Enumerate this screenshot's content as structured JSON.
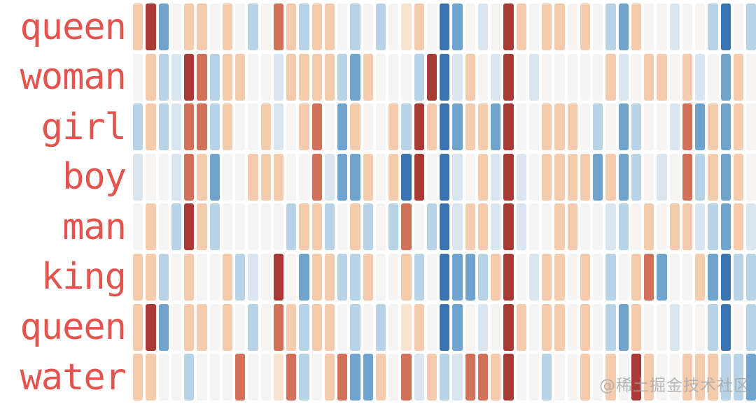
{
  "page": {
    "background": "#ffffff",
    "label_color": "#e2544d"
  },
  "watermark": {
    "text": "@稀土掘金技术社区",
    "color": "#a6a6a6"
  },
  "chart_data": {
    "type": "heatmap",
    "title": "",
    "xlabel": "",
    "ylabel": "",
    "legend": "none",
    "grid": "off",
    "rows": [
      "queen",
      "woman",
      "girl",
      "boy",
      "man",
      "king",
      "queen",
      "water"
    ],
    "n_cols": 49,
    "value_scale": "diverging -4 (strong blue) .. 0 (white) .. +4 (dark red)",
    "colormap": {
      "-4": "#3a74b1",
      "-3": "#6fa4ce",
      "-2": "#b7d3e5",
      "-1": "#d9e6ef",
      "0": "#f7f5f3",
      "1": "#f9e3d1",
      "2": "#f5cbae",
      "3": "#d2705a",
      "4": "#a93a35"
    },
    "values": [
      [
        2,
        4,
        -3,
        0,
        2,
        2,
        0,
        2,
        0,
        -2,
        0,
        3,
        2,
        -2,
        2,
        2,
        0,
        -2,
        0,
        -2,
        0,
        1,
        2,
        0,
        -4,
        -3,
        0,
        -1,
        0,
        4,
        2,
        0,
        2,
        2,
        0,
        2,
        0,
        -2,
        -3,
        2,
        0,
        0,
        -1,
        0,
        0,
        -2,
        -4,
        0,
        -2
      ],
      [
        0,
        2,
        -2,
        -1,
        4,
        3,
        -2,
        2,
        2,
        0,
        0,
        -1,
        2,
        2,
        2,
        2,
        -2,
        -3,
        2,
        0,
        0,
        0,
        -2,
        4,
        -4,
        -1,
        2,
        0,
        -1,
        4,
        0,
        -1,
        0,
        0,
        0,
        0,
        0,
        2,
        -1,
        0,
        2,
        2,
        0,
        2,
        -1,
        0,
        -3,
        2,
        0
      ],
      [
        -2,
        2,
        -2,
        -1,
        3,
        3,
        -2,
        2,
        0,
        0,
        2,
        -1,
        0,
        2,
        3,
        0,
        -3,
        2,
        0,
        0,
        2,
        -2,
        4,
        2,
        -4,
        -3,
        2,
        2,
        -3,
        4,
        0,
        0,
        2,
        2,
        2,
        0,
        -2,
        0,
        -3,
        -2,
        0,
        0,
        -1,
        3,
        -3,
        2,
        -3,
        2,
        0
      ],
      [
        -1,
        0,
        0,
        -1,
        3,
        2,
        -3,
        0,
        0,
        2,
        2,
        2,
        0,
        0,
        3,
        -1,
        -3,
        -3,
        2,
        0,
        2,
        -4,
        4,
        0,
        -4,
        -1,
        0,
        2,
        -1,
        4,
        -1,
        0,
        2,
        2,
        2,
        2,
        -3,
        2,
        -3,
        -2,
        0,
        -1,
        0,
        3,
        -2,
        2,
        -3,
        2,
        0
      ],
      [
        0,
        2,
        0,
        -2,
        4,
        2,
        -2,
        0,
        0,
        0,
        0,
        0,
        -2,
        2,
        2,
        -2,
        0,
        2,
        -2,
        0,
        -2,
        3,
        0,
        -2,
        -4,
        -1,
        2,
        2,
        -1,
        4,
        -1,
        0,
        0,
        2,
        2,
        0,
        0,
        -1,
        -2,
        0,
        2,
        0,
        2,
        2,
        -1,
        -2,
        -3,
        2,
        -1
      ],
      [
        2,
        2,
        -2,
        0,
        2,
        0,
        0,
        2,
        -2,
        -1,
        0,
        4,
        0,
        -3,
        2,
        2,
        -2,
        -2,
        2,
        0,
        0,
        2,
        -2,
        0,
        -4,
        -3,
        -3,
        -2,
        2,
        4,
        0,
        -1,
        2,
        2,
        0,
        2,
        0,
        -2,
        0,
        2,
        3,
        -3,
        0,
        0,
        2,
        -3,
        -4,
        -2,
        -2
      ],
      [
        2,
        4,
        -3,
        0,
        2,
        2,
        0,
        2,
        0,
        -2,
        0,
        3,
        2,
        -2,
        2,
        2,
        0,
        -2,
        0,
        -2,
        0,
        1,
        2,
        0,
        -4,
        -3,
        0,
        -1,
        0,
        4,
        2,
        0,
        2,
        2,
        0,
        2,
        0,
        -2,
        -3,
        2,
        0,
        0,
        -1,
        0,
        0,
        -2,
        -4,
        0,
        -2
      ],
      [
        2,
        2,
        0,
        0,
        -2,
        0,
        0,
        0,
        3,
        0,
        0,
        1,
        3,
        -2,
        0,
        2,
        3,
        -3,
        -3,
        2,
        0,
        3,
        -1,
        2,
        -2,
        -1,
        3,
        3,
        2,
        4,
        0,
        0,
        -2,
        0,
        0,
        2,
        0,
        2,
        0,
        4,
        2,
        0,
        0,
        2,
        2,
        2,
        -2,
        -2,
        -3
      ]
    ]
  }
}
